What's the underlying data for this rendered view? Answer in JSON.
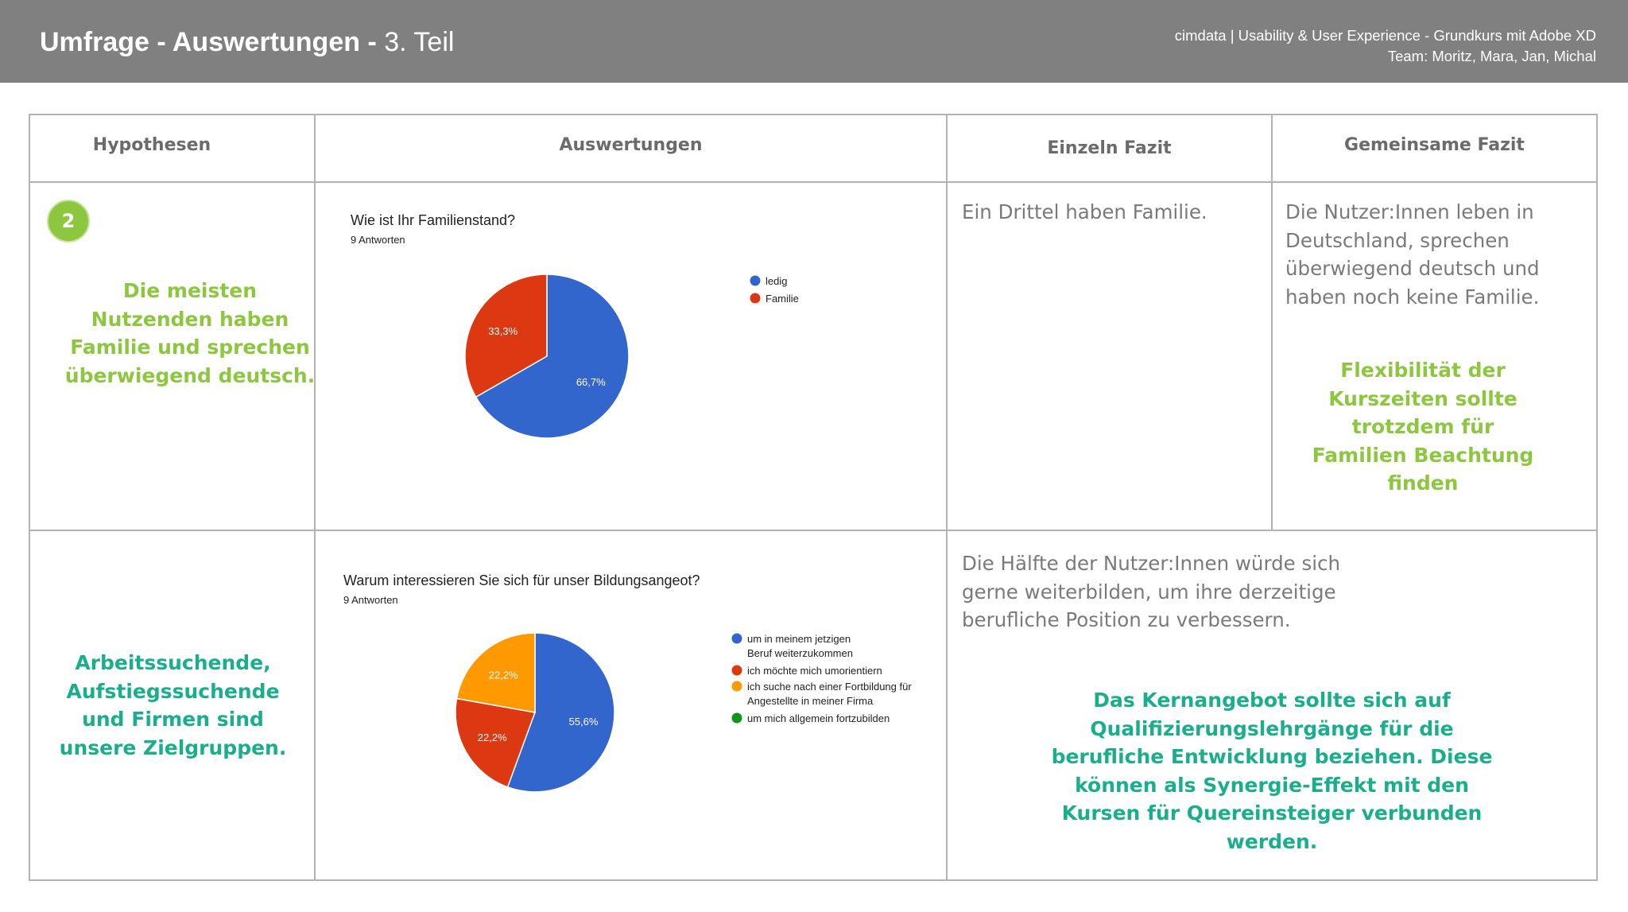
{
  "header": {
    "title_bold": "Umfrage - Auswertungen -",
    "title_rest": " 3. Teil",
    "course_line": "cimdata | Usability & User Experience - Grundkurs mit Adobe XD",
    "team_line": "Team: Moritz, Mara, Jan, Michal"
  },
  "table": {
    "headers": [
      "Hypothesen",
      "Auswertungen",
      "Einzeln Fazit",
      "Gemeinsame Fazit"
    ]
  },
  "row1": {
    "badge": "2",
    "hypothesis": "Die meisten Nutzenden haben Familie und sprechen überwiegend deutsch.",
    "einzeln_fazit": "Ein Drittel haben Familie.",
    "gemeinsame_fazit": "Die Nutzer:Innen leben in Deutschland, sprechen überwiegend deutsch und haben noch keine Familie.",
    "gemeinsame_highlight": "Flexibilität der Kurszeiten sollte trotzdem für Familien Beachtung finden"
  },
  "row2": {
    "hypothesis": "Arbeitssuchende, Aufstiegssuchende und Firmen sind unsere Zielgruppen.",
    "fazit": "Die Hälfte der Nutzer:Innen würde sich gerne weiterbilden, um ihre derzeitige berufliche Position zu verbessern.",
    "fazit_highlight": "Das Kernangebot sollte sich auf Qualifizierungslehrgänge für die berufliche Entwicklung beziehen. Diese können als Synergie-Effekt mit den Kursen für Quereinsteiger verbunden werden."
  },
  "colors": {
    "header_bg": "#808080",
    "hyp_green": "#8dc63f",
    "hyp_teal": "#1aae8b",
    "highlight_green": "#8dc63f",
    "highlight_teal": "#1aae8b",
    "slice_blue": "#3366cc",
    "slice_red": "#dc3912",
    "slice_orange": "#ff9900",
    "slice_green": "#109618"
  },
  "chart_data": [
    {
      "type": "pie",
      "title": "Wie ist Ihr Familienstand?",
      "subtitle": "9 Antworten",
      "legend_position": "right",
      "slices": [
        {
          "label": "ledig",
          "value": 66.7,
          "display": "66,7%",
          "color": "#3366cc"
        },
        {
          "label": "Familie",
          "value": 33.3,
          "display": "33,3%",
          "color": "#dc3912"
        }
      ]
    },
    {
      "type": "pie",
      "title": "Warum interessieren Sie sich für unser Bildungsangeot?",
      "subtitle": "9 Antworten",
      "legend_position": "right",
      "slices": [
        {
          "label": "um in meinem jetzigen Beruf weiterzukommen",
          "value": 55.6,
          "display": "55,6%",
          "color": "#3366cc"
        },
        {
          "label": "ich möchte mich umorientiern",
          "value": 22.2,
          "display": "22,2%",
          "color": "#dc3912"
        },
        {
          "label": "ich suche nach einer Fortbildung für Angestellte in meiner Firma",
          "value": 22.2,
          "display": "22,2%",
          "color": "#ff9900"
        },
        {
          "label": "um mich allgemein fortzubilden",
          "value": 0,
          "display": "",
          "color": "#109618"
        }
      ]
    }
  ]
}
